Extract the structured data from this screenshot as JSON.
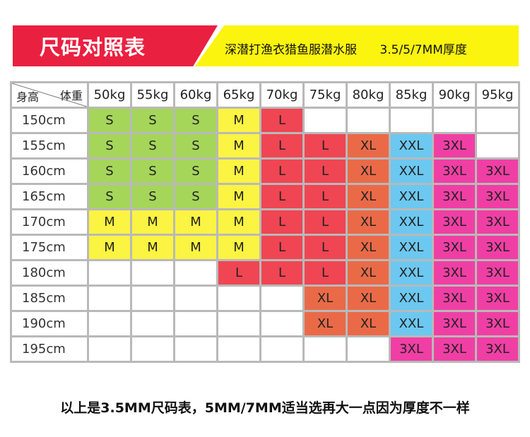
{
  "header": {
    "title": "尺码对照表",
    "subtitle": "深潜打渔衣猎鱼服潜水服      3.5/5/7MM厚度"
  },
  "table": {
    "corner_weight_label": "体重",
    "corner_height_label": "身高",
    "weights": [
      "50kg",
      "55kg",
      "60kg",
      "65kg",
      "70kg",
      "75kg",
      "80kg",
      "85kg",
      "90kg",
      "95kg"
    ],
    "rows": [
      {
        "height": "150cm",
        "sizes": [
          "S",
          "S",
          "S",
          "M",
          "L",
          "",
          "",
          "",
          "",
          ""
        ]
      },
      {
        "height": "155cm",
        "sizes": [
          "S",
          "S",
          "S",
          "M",
          "L",
          "L",
          "XL",
          "XXL",
          "3XL",
          ""
        ]
      },
      {
        "height": "160cm",
        "sizes": [
          "S",
          "S",
          "S",
          "M",
          "L",
          "L",
          "XL",
          "XXL",
          "3XL",
          "3XL"
        ]
      },
      {
        "height": "165cm",
        "sizes": [
          "S",
          "S",
          "S",
          "M",
          "L",
          "L",
          "XL",
          "XXL",
          "3XL",
          "3XL"
        ]
      },
      {
        "height": "170cm",
        "sizes": [
          "M",
          "M",
          "M",
          "M",
          "L",
          "L",
          "XL",
          "XXL",
          "3XL",
          "3XL"
        ]
      },
      {
        "height": "175cm",
        "sizes": [
          "M",
          "M",
          "M",
          "M",
          "L",
          "L",
          "XL",
          "XXL",
          "3XL",
          "3XL"
        ]
      },
      {
        "height": "180cm",
        "sizes": [
          "",
          "",
          "",
          "L",
          "L",
          "L",
          "XL",
          "XXL",
          "3XL",
          "3XL"
        ]
      },
      {
        "height": "185cm",
        "sizes": [
          "",
          "",
          "",
          "",
          "",
          "XL",
          "XL",
          "XXL",
          "3XL",
          "3XL"
        ]
      },
      {
        "height": "190cm",
        "sizes": [
          "",
          "",
          "",
          "",
          "",
          "XL",
          "XL",
          "XXL",
          "3XL",
          "3XL"
        ]
      },
      {
        "height": "195cm",
        "sizes": [
          "",
          "",
          "",
          "",
          "",
          "",
          "",
          "3XL",
          "3XL",
          "3XL"
        ]
      }
    ]
  },
  "size_colors": {
    "S": "#a5d65a",
    "M": "#fbf442",
    "L": "#f04553",
    "XL": "#ea6a48",
    "XXL": "#6cc8f0",
    "3XL": "#f03fa4"
  },
  "footer": {
    "note": "以上是3.5MM尺码表，5MM/7MM适当选再大一点因为厚度不一样"
  }
}
